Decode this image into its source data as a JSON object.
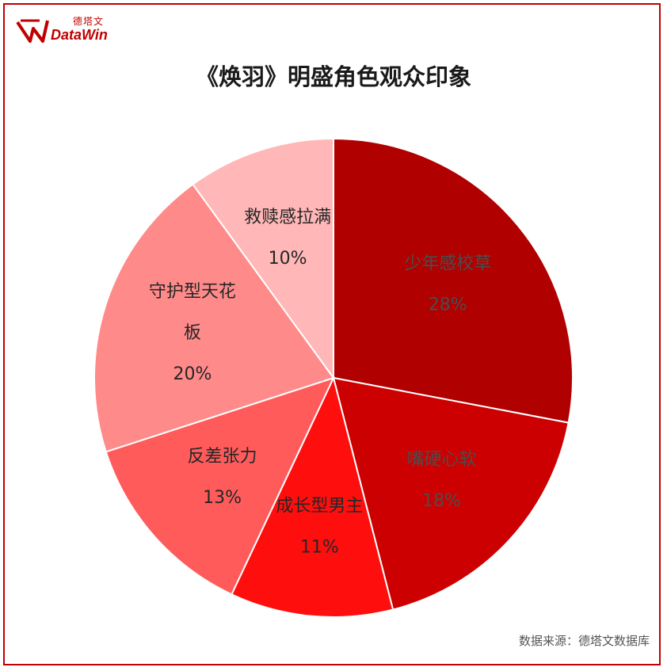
{
  "header": {
    "logo_cn": "德塔文",
    "logo_en": "DataWin"
  },
  "footer": {
    "source": "数据来源：德塔文数据库"
  },
  "colors": {
    "border": "#c00000",
    "brand": "#c00000"
  },
  "chart_data": {
    "type": "pie",
    "title": "《焕羽》明盛角色观众印象",
    "start_angle_deg": 0,
    "direction": "clockwise",
    "slices": [
      {
        "label": "少年感校草",
        "value": 28,
        "display": "28%",
        "color": "#b00000",
        "text_color": "#4d4d4d",
        "label_lines": [
          "少年感校草"
        ]
      },
      {
        "label": "嘴硬心软",
        "value": 18,
        "display": "18%",
        "color": "#cc0000",
        "text_color": "#4d4d4d",
        "label_lines": [
          "嘴硬心软"
        ]
      },
      {
        "label": "成长型男主",
        "value": 11,
        "display": "11%",
        "color": "#ff0e0e",
        "text_color": "#262626",
        "label_lines": [
          "成长型男主"
        ]
      },
      {
        "label": "反差张力",
        "value": 13,
        "display": "13%",
        "color": "#ff5b5b",
        "text_color": "#262626",
        "label_lines": [
          "反差张力"
        ]
      },
      {
        "label": "守护型天花板",
        "value": 20,
        "display": "20%",
        "color": "#ff8a8a",
        "text_color": "#262626",
        "label_lines": [
          "守护型天花",
          "板"
        ]
      },
      {
        "label": "救赎感拉满",
        "value": 10,
        "display": "10%",
        "color": "#ffb7b7",
        "text_color": "#262626",
        "label_lines": [
          "救赎感拉满"
        ]
      }
    ]
  }
}
